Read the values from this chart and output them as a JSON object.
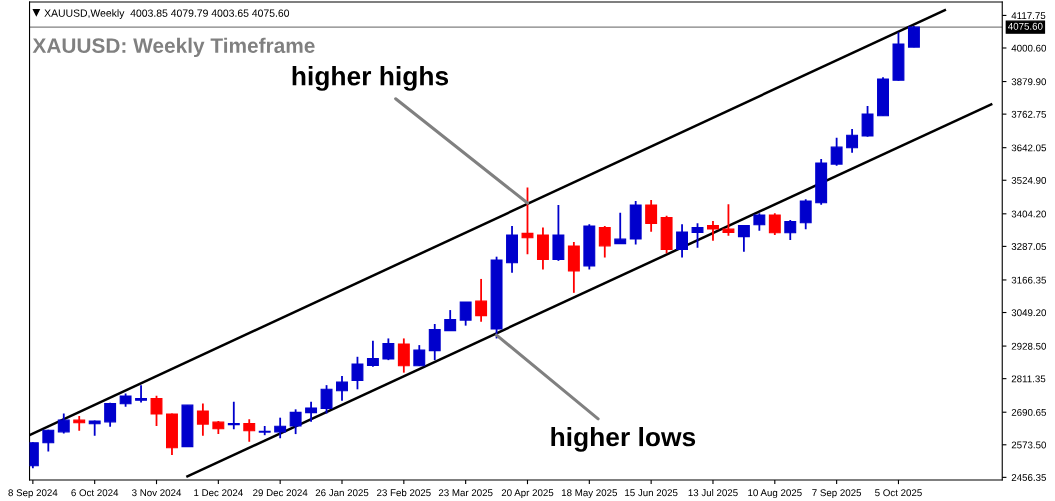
{
  "chart_data": {
    "type": "candlestick",
    "title": "XAUUSD: Weekly Timeframe",
    "x": [
      "2024-09-08",
      "2024-09-15",
      "2024-09-22",
      "2024-09-29",
      "2024-10-06",
      "2024-10-13",
      "2024-10-20",
      "2024-10-27",
      "2024-11-03",
      "2024-11-10",
      "2024-11-17",
      "2024-11-24",
      "2024-12-01",
      "2024-12-08",
      "2024-12-15",
      "2024-12-22",
      "2024-12-29",
      "2025-01-05",
      "2025-01-12",
      "2025-01-19",
      "2025-01-26",
      "2025-02-02",
      "2025-02-09",
      "2025-02-16",
      "2025-02-23",
      "2025-03-02",
      "2025-03-09",
      "2025-03-16",
      "2025-03-23",
      "2025-03-30",
      "2025-04-06",
      "2025-04-13",
      "2025-04-20",
      "2025-04-27",
      "2025-05-04",
      "2025-05-11",
      "2025-05-18",
      "2025-05-25",
      "2025-06-01",
      "2025-06-08",
      "2025-06-15",
      "2025-06-22",
      "2025-06-29",
      "2025-07-06",
      "2025-07-13",
      "2025-07-20",
      "2025-07-27",
      "2025-08-03",
      "2025-08-10",
      "2025-08-17",
      "2025-08-24",
      "2025-08-31",
      "2025-09-07",
      "2025-09-14",
      "2025-09-21",
      "2025-09-28",
      "2025-10-05",
      "2025-10-12"
    ],
    "ohlc": [
      [
        2498,
        2583,
        2489,
        2581
      ],
      [
        2581,
        2628,
        2549,
        2626
      ],
      [
        2620,
        2686,
        2614,
        2662
      ],
      [
        2662,
        2677,
        2624,
        2653
      ],
      [
        2649,
        2661,
        2606,
        2659
      ],
      [
        2656,
        2725,
        2638,
        2722
      ],
      [
        2721,
        2758,
        2710,
        2749
      ],
      [
        2734,
        2788,
        2726,
        2740
      ],
      [
        2740,
        2750,
        2641,
        2684
      ],
      [
        2684,
        2686,
        2537,
        2563
      ],
      [
        2567,
        2716,
        2567,
        2716
      ],
      [
        2695,
        2722,
        2606,
        2648
      ],
      [
        2655,
        2659,
        2612,
        2631
      ],
      [
        2646,
        2728,
        2629,
        2650
      ],
      [
        2650,
        2665,
        2584,
        2624
      ],
      [
        2619,
        2641,
        2608,
        2622
      ],
      [
        2620,
        2671,
        2597,
        2640
      ],
      [
        2641,
        2701,
        2612,
        2690
      ],
      [
        2689,
        2728,
        2656,
        2706
      ],
      [
        2704,
        2788,
        2686,
        2773
      ],
      [
        2768,
        2821,
        2732,
        2799
      ],
      [
        2805,
        2890,
        2773,
        2864
      ],
      [
        2859,
        2948,
        2854,
        2884
      ],
      [
        2882,
        2956,
        2878,
        2938
      ],
      [
        2936,
        2956,
        2833,
        2858
      ],
      [
        2858,
        2932,
        2857,
        2914
      ],
      [
        2912,
        3008,
        2878,
        2988
      ],
      [
        2984,
        3058,
        2984,
        3024
      ],
      [
        3022,
        3087,
        3002,
        3087
      ],
      [
        3090,
        3170,
        3016,
        3038
      ],
      [
        2990,
        3250,
        2956,
        3238
      ],
      [
        3228,
        3360,
        3192,
        3328
      ],
      [
        3334,
        3499,
        3259,
        3318
      ],
      [
        3328,
        3355,
        3204,
        3240
      ],
      [
        3240,
        3436,
        3235,
        3328
      ],
      [
        3288,
        3303,
        3120,
        3199
      ],
      [
        3217,
        3367,
        3204,
        3360
      ],
      [
        3355,
        3360,
        3247,
        3289
      ],
      [
        3297,
        3408,
        3296,
        3313
      ],
      [
        3314,
        3450,
        3294,
        3436
      ],
      [
        3436,
        3454,
        3340,
        3370
      ],
      [
        3391,
        3397,
        3262,
        3276
      ],
      [
        3276,
        3367,
        3247,
        3339
      ],
      [
        3337,
        3370,
        3282,
        3355
      ],
      [
        3362,
        3378,
        3307,
        3350
      ],
      [
        3349,
        3439,
        3325,
        3337
      ],
      [
        3322,
        3362,
        3268,
        3362
      ],
      [
        3365,
        3406,
        3343,
        3400
      ],
      [
        3400,
        3406,
        3328,
        3336
      ],
      [
        3336,
        3382,
        3310,
        3376
      ],
      [
        3372,
        3457,
        3349,
        3450
      ],
      [
        3444,
        3601,
        3437,
        3587
      ],
      [
        3583,
        3678,
        3577,
        3644
      ],
      [
        3642,
        3709,
        3624,
        3687
      ],
      [
        3684,
        3792,
        3681,
        3763
      ],
      [
        3757,
        3895,
        3757,
        3889
      ],
      [
        3885,
        4057,
        3883,
        4015
      ],
      [
        4003.85,
        4079.79,
        4003.65,
        4075.6
      ]
    ],
    "colors": [
      "#0000cc",
      "#0000cc",
      "#0000cc",
      "#ff0000",
      "#0000cc",
      "#0000cc",
      "#0000cc",
      "#0000cc",
      "#ff0000",
      "#ff0000",
      "#0000cc",
      "#ff0000",
      "#ff0000",
      "#0000cc",
      "#ff0000",
      "#0000cc",
      "#0000cc",
      "#0000cc",
      "#0000cc",
      "#0000cc",
      "#0000cc",
      "#0000cc",
      "#0000cc",
      "#0000cc",
      "#ff0000",
      "#0000cc",
      "#0000cc",
      "#0000cc",
      "#0000cc",
      "#ff0000",
      "#0000cc",
      "#0000cc",
      "#ff0000",
      "#ff0000",
      "#0000cc",
      "#ff0000",
      "#0000cc",
      "#ff0000",
      "#0000cc",
      "#0000cc",
      "#ff0000",
      "#ff0000",
      "#0000cc",
      "#0000cc",
      "#ff0000",
      "#ff0000",
      "#0000cc",
      "#0000cc",
      "#ff0000",
      "#0000cc",
      "#0000cc",
      "#0000cc",
      "#0000cc",
      "#0000cc",
      "#0000cc",
      "#0000cc",
      "#0000cc",
      "#0000cc"
    ],
    "series": [
      {
        "type": "line",
        "x": [
          "2024-09-07",
          "2025-10-26"
        ],
        "values": [
          2610,
          4137
        ],
        "color": "#000000"
      },
      {
        "type": "line",
        "x": [
          "2024-11-17",
          "2025-11-16"
        ],
        "values": [
          2460,
          3798
        ],
        "color": "#000000"
      }
    ],
    "ref_lines": [
      {
        "axis": "y",
        "value": 4075.6,
        "label": "4075.60",
        "color": "#808080"
      }
    ],
    "xlim": [
      "2024-09-06T12:00",
      "2025-11-21"
    ],
    "xticks": [
      {
        "value": "2024-09-08",
        "label": "8 Sep 2024"
      },
      {
        "value": "2024-10-06",
        "label": "6 Oct 2024"
      },
      {
        "value": "2024-11-03",
        "label": "3 Nov 2024"
      },
      {
        "value": "2024-12-01",
        "label": "1 Dec 2024"
      },
      {
        "value": "2024-12-29",
        "label": "29 Dec 2024"
      },
      {
        "value": "2025-01-26",
        "label": "26 Jan 2025"
      },
      {
        "value": "2025-02-23",
        "label": "23 Feb 2025"
      },
      {
        "value": "2025-03-23",
        "label": "23 Mar 2025"
      },
      {
        "value": "2025-04-20",
        "label": "20 Apr 2025"
      },
      {
        "value": "2025-05-18",
        "label": "18 May 2025"
      },
      {
        "value": "2025-06-15",
        "label": "15 Jun 2025"
      },
      {
        "value": "2025-07-13",
        "label": "13 Jul 2025"
      },
      {
        "value": "2025-08-10",
        "label": "10 Aug 2025"
      },
      {
        "value": "2025-09-07",
        "label": "7 Sep 2025"
      },
      {
        "value": "2025-10-05",
        "label": "5 Oct 2025"
      }
    ],
    "ylim": [
      2447,
      4166
    ],
    "yticks": [
      {
        "value": 2456.35,
        "label": "2456.35"
      },
      {
        "value": 2573.5,
        "label": "2573.50"
      },
      {
        "value": 2690.65,
        "label": "2690.65"
      },
      {
        "value": 2811.35,
        "label": "2811.35"
      },
      {
        "value": 2928.5,
        "label": "2928.50"
      },
      {
        "value": 3049.2,
        "label": "3049.20"
      },
      {
        "value": 3166.35,
        "label": "3166.35"
      },
      {
        "value": 3287.05,
        "label": "3287.05"
      },
      {
        "value": 3404.2,
        "label": "3404.20"
      },
      {
        "value": 3524.9,
        "label": "3524.90"
      },
      {
        "value": 3642.05,
        "label": "3642.05"
      },
      {
        "value": 3762.75,
        "label": "3762.75"
      },
      {
        "value": 3879.9,
        "label": "3879.90"
      },
      {
        "value": 4000.6,
        "label": "4000.60"
      },
      {
        "value": 4117.75,
        "label": "4117.75"
      }
    ],
    "grid": false,
    "annotations": [
      "XAUUSD,Weekly  4003.85 4079.79 4003.65 4075.60",
      {
        "text": "higher highs",
        "x": "2025-04-20",
        "y": 3443
      },
      {
        "text": "higher lows",
        "x": "2025-04-06",
        "y": 2968
      }
    ]
  }
}
